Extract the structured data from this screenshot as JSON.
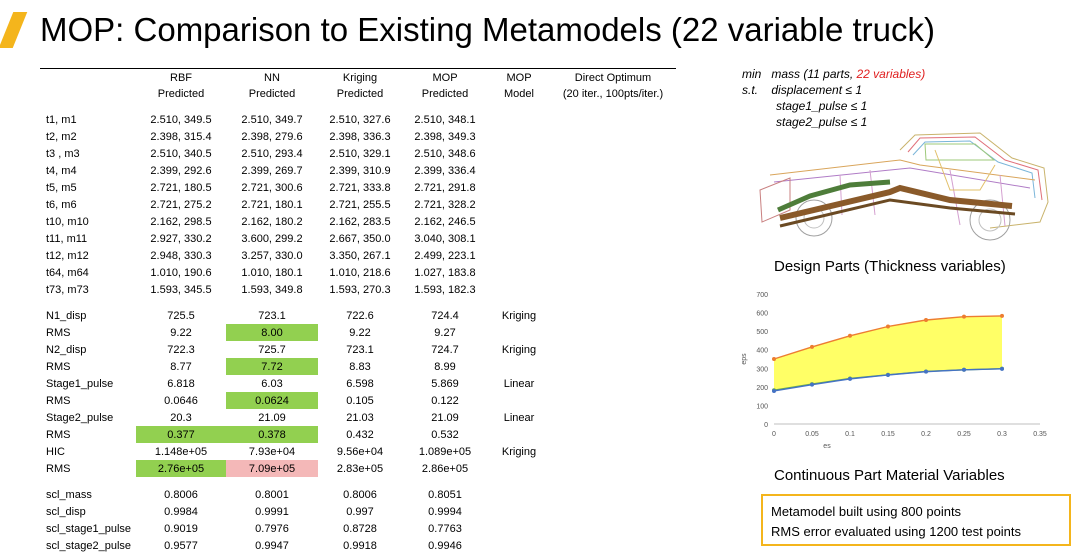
{
  "title": "MOP: Comparison to Existing Metamodels (22 variable truck)",
  "table": {
    "headers_top": [
      "",
      "RBF",
      "NN",
      "Kriging",
      "MOP",
      "MOP",
      "Direct Optimum"
    ],
    "headers_bottom": [
      "",
      "Predicted",
      "Predicted",
      "Predicted",
      "Predicted",
      "Model",
      "(20 iter., 100pts/iter.)"
    ],
    "part_rows": [
      {
        "label": "t1, m1",
        "rbf": "2.510, 349.5",
        "nn": "2.510, 349.7",
        "kriging": "2.510, 327.6",
        "mop": "2.510, 348.1"
      },
      {
        "label": "t2, m2",
        "rbf": "2.398, 315.4",
        "nn": "2.398, 279.6",
        "kriging": "2.398, 336.3",
        "mop": "2.398, 349.3"
      },
      {
        "label": "t3 , m3",
        "rbf": "2.510, 340.5",
        "nn": "2.510, 293.4",
        "kriging": "2.510, 329.1",
        "mop": "2.510, 348.6"
      },
      {
        "label": "t4, m4",
        "rbf": "2.399, 292.6",
        "nn": "2.399, 269.7",
        "kriging": "2.399, 310.9",
        "mop": "2.399, 336.4"
      },
      {
        "label": "t5, m5",
        "rbf": "2.721, 180.5",
        "nn": "2.721, 300.6",
        "kriging": "2.721, 333.8",
        "mop": "2.721, 291.8"
      },
      {
        "label": "t6, m6",
        "rbf": "2.721, 275.2",
        "nn": "2.721, 180.1",
        "kriging": "2.721, 255.5",
        "mop": "2.721, 328.2"
      },
      {
        "label": "t10, m10",
        "rbf": "2.162, 298.5",
        "nn": "2.162, 180.2",
        "kriging": "2.162, 283.5",
        "mop": "2.162, 246.5"
      },
      {
        "label": "t11, m11",
        "rbf": "2.927, 330.2",
        "nn": "3.600, 299.2",
        "kriging": "2.667, 350.0",
        "mop": "3.040, 308.1"
      },
      {
        "label": "t12, m12",
        "rbf": "2.948, 330.3",
        "nn": "3.257, 330.0",
        "kriging": "3.350, 267.1",
        "mop": "2.499, 223.1"
      },
      {
        "label": "t64, m64",
        "rbf": "1.010, 190.6",
        "nn": "1.010, 180.1",
        "kriging": "1.010, 218.6",
        "mop": "1.027, 183.8"
      },
      {
        "label": "t73, m73",
        "rbf": "1.593, 345.5",
        "nn": "1.593, 349.8",
        "kriging": "1.593, 270.3",
        "mop": "1.593, 182.3"
      }
    ],
    "response_rows": [
      {
        "label": "N1_disp",
        "rbf": "725.5",
        "nn": "723.1",
        "kriging": "722.6",
        "mop": "724.4",
        "model": "Kriging"
      },
      {
        "label": "RMS",
        "rbf": "9.22",
        "nn": "8.00",
        "kriging": "9.22",
        "mop": "9.27",
        "model": "",
        "hl": {
          "nn": "green"
        }
      },
      {
        "label": "N2_disp",
        "rbf": "722.3",
        "nn": "725.7",
        "kriging": "723.1",
        "mop": "724.7",
        "model": "Kriging"
      },
      {
        "label": "RMS",
        "rbf": "8.77",
        "nn": "7.72",
        "kriging": "8.83",
        "mop": "8.99",
        "model": "",
        "hl": {
          "nn": "green"
        }
      },
      {
        "label": "Stage1_pulse",
        "rbf": "6.818",
        "nn": "6.03",
        "kriging": "6.598",
        "mop": "5.869",
        "model": "Linear"
      },
      {
        "label": "RMS",
        "rbf": "0.0646",
        "nn": "0.0624",
        "kriging": "0.105",
        "mop": "0.122",
        "model": "",
        "hl": {
          "nn": "green"
        }
      },
      {
        "label": "Stage2_pulse",
        "rbf": "20.3",
        "nn": "21.09",
        "kriging": "21.03",
        "mop": "21.09",
        "model": "Linear"
      },
      {
        "label": "RMS",
        "rbf": "0.377",
        "nn": "0.378",
        "kriging": "0.432",
        "mop": "0.532",
        "model": "",
        "hl": {
          "rbf": "green",
          "nn": "green"
        }
      },
      {
        "label": "HIC",
        "rbf": "1.148e+05",
        "nn": "7.93e+04",
        "kriging": "9.56e+04",
        "mop": "1.089e+05",
        "model": "Kriging"
      },
      {
        "label": "RMS",
        "rbf": "2.76e+05",
        "nn": "7.09e+05",
        "kriging": "2.83e+05",
        "mop": "2.86e+05",
        "model": "",
        "hl": {
          "rbf": "green",
          "nn": "pink"
        }
      }
    ],
    "scaled_rows": [
      {
        "label": "scl_mass",
        "rbf": "0.8006",
        "nn": "0.8001",
        "kriging": "0.8006",
        "mop": "0.8051"
      },
      {
        "label": "scl_disp",
        "rbf": "0.9984",
        "nn": "0.9991",
        "kriging": "0.997",
        "mop": "0.9994"
      },
      {
        "label": "scl_stage1_pulse",
        "rbf": "0.9019",
        "nn": "0.7976",
        "kriging": "0.8728",
        "mop": "0.7763"
      },
      {
        "label": "scl_stage2_pulse",
        "rbf": "0.9577",
        "nn": "0.9947",
        "kriging": "0.9918",
        "mop": "0.9946"
      }
    ]
  },
  "formula": {
    "min_kw": "min",
    "min_text": "mass (11 parts, ",
    "min_red": "22 variables)",
    "st_kw": "s.t.",
    "constraints": [
      "displacement ≤ 1",
      "stage1_pulse ≤ 1",
      "stage2_pulse ≤ 1"
    ]
  },
  "design_parts_caption": "Design Parts (Thickness variables)",
  "material_caption": "Continuous Part Material Variables",
  "note_lines": [
    "Metamodel built using 800 points",
    "RMS error evaluated using 1200 test points"
  ],
  "chart_data": {
    "type": "line",
    "xlabel": "es",
    "ylabel": "eps",
    "xlim": [
      0,
      0.35
    ],
    "ylim": [
      0,
      700
    ],
    "x_ticks": [
      "0",
      "0.05",
      "0.1",
      "0.15",
      "0.2",
      "0.25",
      "0.3",
      "0.35"
    ],
    "y_ticks": [
      "0",
      "100",
      "200",
      "300",
      "400",
      "500",
      "600",
      "700"
    ],
    "series": [
      {
        "name": "upper",
        "color": "#ed7d31",
        "x": [
          0,
          0.05,
          0.1,
          0.15,
          0.2,
          0.25,
          0.3
        ],
        "y": [
          350,
          415,
          475,
          525,
          560,
          578,
          582
        ]
      },
      {
        "name": "middle",
        "color": "#70ad47",
        "x": [
          0,
          0.05,
          0.1,
          0.15,
          0.2,
          0.25,
          0.3
        ],
        "y": [
          182,
          215,
          245,
          265,
          283,
          292,
          298
        ]
      },
      {
        "name": "lower",
        "color": "#4472c4",
        "x": [
          0,
          0.05,
          0.1,
          0.15,
          0.2,
          0.25,
          0.3
        ],
        "y": [
          178,
          212,
          243,
          264,
          282,
          292,
          297
        ]
      }
    ],
    "band_color": "#ffff66"
  }
}
